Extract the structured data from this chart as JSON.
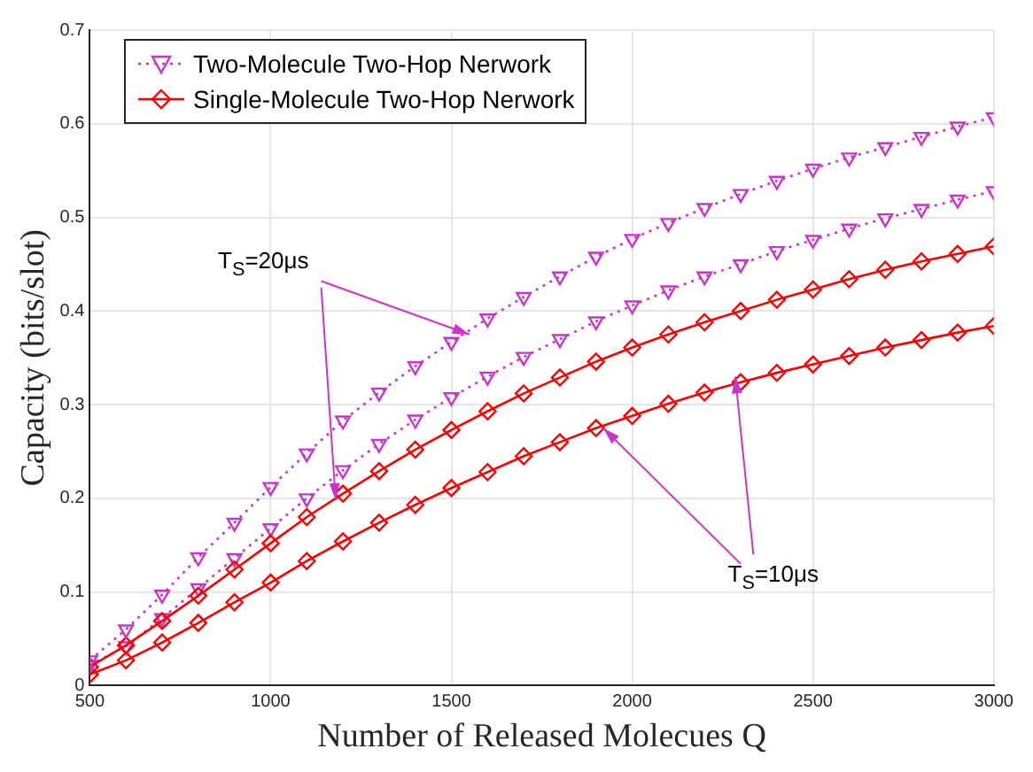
{
  "chart_data": {
    "type": "line",
    "xlabel": "Number of Released Molecues Q",
    "ylabel": "Capacity (bits/slot)",
    "x": [
      500,
      600,
      700,
      800,
      900,
      1000,
      1100,
      1200,
      1300,
      1400,
      1500,
      1600,
      1700,
      1800,
      1900,
      2000,
      2100,
      2200,
      2300,
      2400,
      2500,
      2600,
      2700,
      2800,
      2900,
      3000
    ],
    "series": [
      {
        "name": "Two-Molecule Two-Hop Nerwork",
        "color": "#cc33cc",
        "marker": "triangle",
        "line_style": "dotted",
        "values": [
          0.027,
          0.06,
          0.097,
          0.137,
          0.174,
          0.212,
          0.248,
          0.283,
          0.313,
          0.341,
          0.367,
          0.392,
          0.415,
          0.437,
          0.458,
          0.477,
          0.494,
          0.51,
          0.525,
          0.539,
          0.552,
          0.564,
          0.575,
          0.586,
          0.597,
          0.607
        ]
      },
      {
        "name": "Single-Molecule Two-Hop Nerwork",
        "color": "#ff0000",
        "marker": "diamond",
        "line_style": "solid",
        "values": [
          0.02,
          0.043,
          0.069,
          0.096,
          0.124,
          0.152,
          0.18,
          0.205,
          0.229,
          0.252,
          0.273,
          0.293,
          0.312,
          0.329,
          0.346,
          0.361,
          0.375,
          0.388,
          0.4,
          0.412,
          0.423,
          0.434,
          0.444,
          0.453,
          0.461,
          0.469
        ]
      },
      {
        "color": "#cc33cc",
        "marker": "triangle",
        "line_style": "dotted",
        "values": [
          0.022,
          0.042,
          0.072,
          0.104,
          0.136,
          0.168,
          0.2,
          0.23,
          0.258,
          0.284,
          0.308,
          0.33,
          0.351,
          0.37,
          0.389,
          0.406,
          0.422,
          0.437,
          0.45,
          0.464,
          0.476,
          0.488,
          0.499,
          0.509,
          0.519,
          0.528
        ]
      },
      {
        "color": "#ff0000",
        "marker": "diamond",
        "line_style": "solid",
        "values": [
          0.012,
          0.027,
          0.046,
          0.067,
          0.089,
          0.11,
          0.133,
          0.154,
          0.174,
          0.193,
          0.211,
          0.228,
          0.245,
          0.26,
          0.275,
          0.288,
          0.301,
          0.313,
          0.324,
          0.334,
          0.343,
          0.352,
          0.361,
          0.369,
          0.377,
          0.384
        ]
      }
    ],
    "xlim": [
      500,
      3000
    ],
    "xticks": [
      500,
      1000,
      1500,
      2000,
      2500,
      3000
    ],
    "ylim": [
      0,
      0.7
    ],
    "yticks": [
      0,
      0.1,
      0.2,
      0.3,
      0.4,
      0.5,
      0.6,
      0.7
    ],
    "grid": true,
    "legend": "top left",
    "annotations": [
      {
        "text": "T$_{S}$=20μs",
        "x": 1550,
        "y": 0.375
      },
      {
        "text": "T$_{S}$=10μs",
        "x": 1920,
        "y": 0.275
      }
    ]
  }
}
